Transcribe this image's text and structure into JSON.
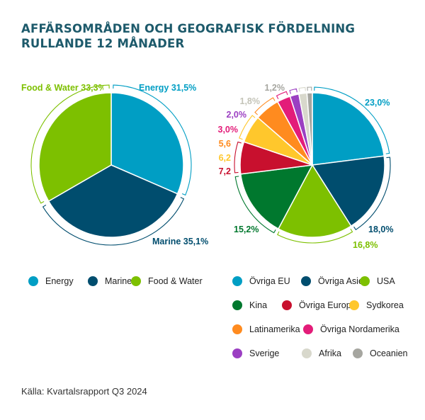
{
  "title": {
    "line1": "AFFÄRSOMRÅDEN OCH GEOGRAFISK FÖRDELNING",
    "line2": "RULLANDE 12 MÅNADER"
  },
  "source": "Källa: Kvartalsrapport Q3 2024",
  "chart_data": [
    {
      "type": "pie",
      "categories": [
        "Energy",
        "Marine",
        "Food & Water"
      ],
      "values": [
        31.5,
        35.1,
        33.3
      ],
      "labels": [
        "Energy 31,5%",
        "Marine 35,1%",
        "Food & Water 33,3%"
      ],
      "colors": [
        "#009ec4",
        "#004d6e",
        "#7dc000"
      ],
      "legend": [
        "Energy",
        "Marine",
        "Food & Water"
      ],
      "legend_position": "bottom"
    },
    {
      "type": "pie",
      "categories": [
        "Övriga EU",
        "Övriga Asien",
        "USA",
        "Kina",
        "Övriga Europa",
        "Sydkorea",
        "Latinamerika",
        "Övriga Nordamerika",
        "Sverige",
        "Afrika",
        "Oceanien"
      ],
      "values": [
        23.0,
        18.0,
        16.8,
        15.2,
        7.2,
        6.2,
        5.6,
        3.0,
        2.0,
        1.8,
        1.2
      ],
      "labels": [
        "23,0%",
        "18,0%",
        "16,8%",
        "15,2%",
        "7,2",
        "6,2",
        "5,6",
        "3,0%",
        "2,0%",
        "1,8%",
        "1,2%"
      ],
      "colors": [
        "#009ec4",
        "#004d6e",
        "#7dc000",
        "#00782e",
        "#c8102e",
        "#ffc72c",
        "#ff8b1f",
        "#e31c79",
        "#9b3fc2",
        "#d8d8cc",
        "#a6a6a0"
      ],
      "legend": [
        "Övriga EU",
        "Övriga Asien",
        "USA",
        "Kina",
        "Övriga Europa",
        "Sydkorea",
        "Latinamerika",
        "Övriga Nordamerika",
        "Sverige",
        "Afrika",
        "Oceanien"
      ],
      "legend_position": "bottom"
    }
  ]
}
